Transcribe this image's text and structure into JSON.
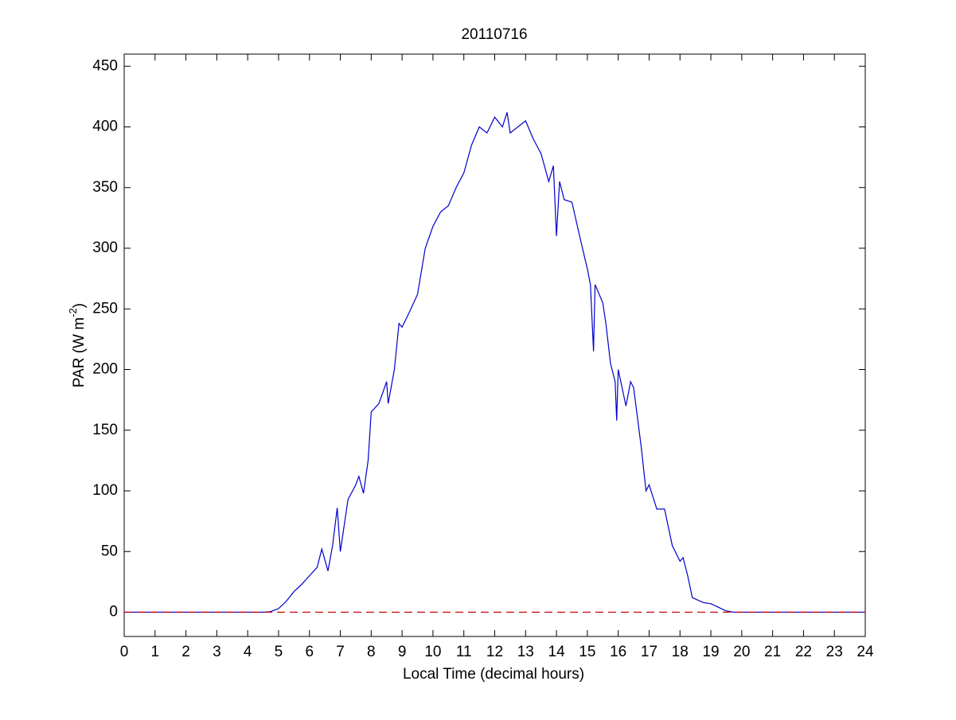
{
  "chart_data": {
    "type": "line",
    "title": "20110716",
    "x_label": "Local Time (decimal hours)",
    "y_label_parts": [
      "PAR (W m",
      "-2",
      ")"
    ],
    "xlim": [
      0,
      24
    ],
    "ylim": [
      -20,
      460
    ],
    "xticks": [
      0,
      1,
      2,
      3,
      4,
      5,
      6,
      7,
      8,
      9,
      10,
      11,
      12,
      13,
      14,
      15,
      16,
      17,
      18,
      19,
      20,
      21,
      22,
      23,
      24
    ],
    "yticks": [
      0,
      50,
      100,
      150,
      200,
      250,
      300,
      350,
      400,
      450
    ],
    "series": [
      {
        "color": "#0000cc",
        "style": "solid",
        "x": [
          0,
          4.5,
          4.75,
          5,
          5.25,
          5.5,
          5.75,
          6,
          6.25,
          6.4,
          6.6,
          6.75,
          6.9,
          7.0,
          7.25,
          7.5,
          7.6,
          7.75,
          7.9,
          8.0,
          8.25,
          8.5,
          8.55,
          8.75,
          8.9,
          9.0,
          9.25,
          9.5,
          9.75,
          10,
          10.25,
          10.5,
          10.75,
          11,
          11.25,
          11.5,
          11.75,
          12,
          12.25,
          12.4,
          12.5,
          12.75,
          13,
          13.25,
          13.5,
          13.75,
          13.9,
          14,
          14.1,
          14.25,
          14.5,
          14.75,
          15,
          15.1,
          15.2,
          15.25,
          15.5,
          15.6,
          15.75,
          15.9,
          15.95,
          16,
          16.25,
          16.4,
          16.5,
          16.75,
          16.9,
          17,
          17.25,
          17.5,
          17.75,
          18,
          18.1,
          18.25,
          18.4,
          18.75,
          19,
          19.25,
          19.5,
          19.75,
          20,
          24
        ],
        "values": [
          0,
          0,
          0.5,
          3,
          9,
          17,
          23,
          30,
          37,
          52,
          34,
          55,
          86,
          50,
          93,
          105,
          112,
          98,
          125,
          165,
          172,
          190,
          172,
          200,
          238,
          235,
          248,
          262,
          300,
          318,
          330,
          335,
          350,
          362,
          385,
          400,
          395,
          408,
          400,
          412,
          395,
          400,
          405,
          390,
          378,
          355,
          368,
          310,
          355,
          340,
          338,
          310,
          283,
          270,
          215,
          270,
          255,
          238,
          205,
          190,
          158,
          200,
          170,
          190,
          185,
          135,
          100,
          105,
          85,
          85,
          55,
          42,
          45,
          30,
          12,
          8,
          7,
          4,
          1,
          0,
          0,
          0
        ]
      },
      {
        "color": "#cc0000",
        "style": "dashed",
        "x": [
          0,
          24
        ],
        "values": [
          0,
          0
        ]
      }
    ]
  }
}
